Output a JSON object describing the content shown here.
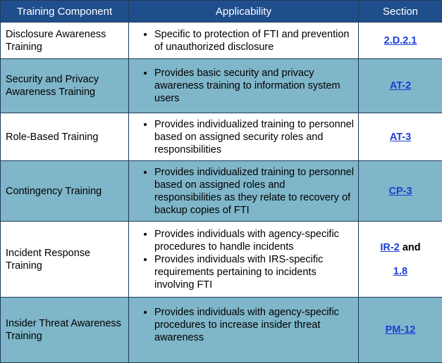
{
  "headers": {
    "component": "Training Component",
    "applicability": "Applicability",
    "section": "Section"
  },
  "rows": [
    {
      "component": "Disclosure Awareness Training",
      "bullets": [
        "Specific to protection of FTI and prevention of unauthorized disclosure"
      ],
      "section": "2.D.2.1"
    },
    {
      "component": "Security and Privacy Awareness Training",
      "bullets": [
        "Provides basic security and privacy awareness training to information system users"
      ],
      "section": "AT-2"
    },
    {
      "component": "Role-Based Training",
      "bullets": [
        "Provides individualized training to personnel based on assigned security roles and responsibilities"
      ],
      "section": "AT-3"
    },
    {
      "component": "Contingency Training",
      "bullets": [
        "Provides individualized training to personnel based on assigned roles and responsibilities as they relate to recovery of backup copies of FTI"
      ],
      "section": "CP-3"
    },
    {
      "component": "Incident Response Training",
      "bullets": [
        "Provides individuals with agency-specific procedures to handle incidents",
        "Provides individuals with IRS-specific requirements pertaining to incidents involving FTI"
      ],
      "section": "IR-2",
      "section_joiner": "and",
      "section_2": "1.8"
    },
    {
      "component": "Insider Threat Awareness Training",
      "bullets": [
        "Provides individuals with agency-specific procedures to increase insider threat awareness"
      ],
      "section": "PM-12"
    }
  ]
}
